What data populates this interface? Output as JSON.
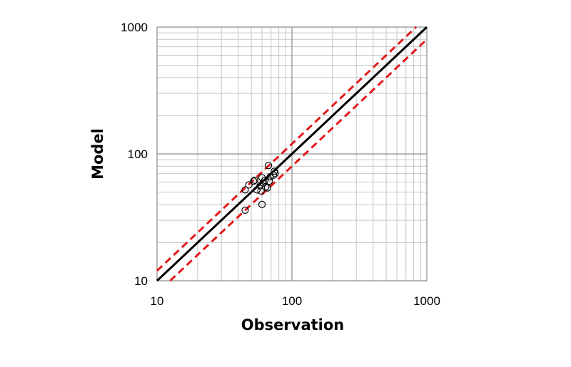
{
  "chart_data": {
    "type": "scatter",
    "title": "",
    "xlabel": "Observation",
    "ylabel": "Model",
    "xscale": "log",
    "yscale": "log",
    "xlim": [
      10,
      1000
    ],
    "ylim": [
      10,
      1000
    ],
    "grid": true,
    "legend": "none",
    "x_tick_labels": [
      "10",
      "100",
      "1000"
    ],
    "y_tick_labels": [
      "10",
      "100",
      "1000"
    ],
    "series": [
      {
        "marker": "open-circle",
        "color": "#000000",
        "points": [
          {
            "x": 45,
            "y": 36
          },
          {
            "x": 45,
            "y": 52
          },
          {
            "x": 48,
            "y": 57
          },
          {
            "x": 52,
            "y": 61
          },
          {
            "x": 53,
            "y": 62
          },
          {
            "x": 55,
            "y": 52
          },
          {
            "x": 58,
            "y": 56
          },
          {
            "x": 59,
            "y": 51
          },
          {
            "x": 60,
            "y": 40
          },
          {
            "x": 60,
            "y": 65
          },
          {
            "x": 61,
            "y": 59
          },
          {
            "x": 63,
            "y": 62
          },
          {
            "x": 64,
            "y": 55
          },
          {
            "x": 66,
            "y": 54
          },
          {
            "x": 67,
            "y": 81
          },
          {
            "x": 68,
            "y": 61
          },
          {
            "x": 69,
            "y": 66
          },
          {
            "x": 73,
            "y": 68
          },
          {
            "x": 74,
            "y": 73
          },
          {
            "x": 75,
            "y": 70
          }
        ]
      }
    ],
    "reference_lines": [
      {
        "kind": "1:1",
        "factor": 1,
        "color": "#000000",
        "style": "solid"
      },
      {
        "kind": "upper bound",
        "factor": 1.2,
        "color": "#e31a1c",
        "style": "dashed"
      },
      {
        "kind": "lower bound",
        "factor": 0.8,
        "color": "#e31a1c",
        "style": "dashed"
      }
    ]
  }
}
